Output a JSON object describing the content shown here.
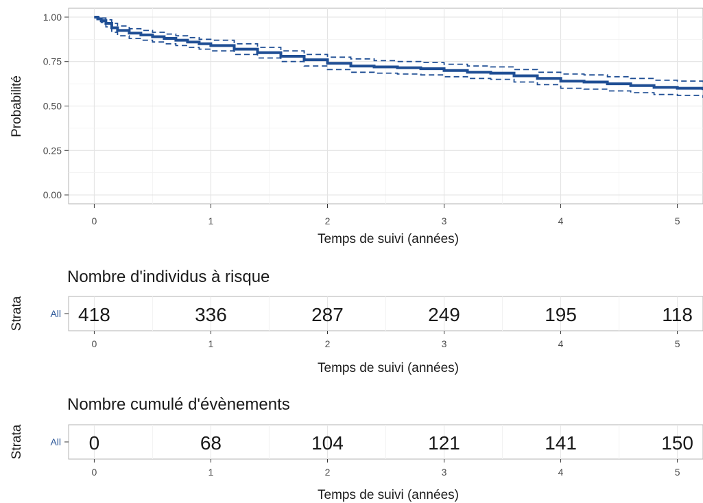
{
  "chart_data": [
    {
      "type": "line",
      "title": "",
      "xlabel": "Temps de suivi (années)",
      "ylabel": "Probabilité",
      "xlim": [
        -0.22,
        5.22
      ],
      "ylim": [
        -0.05,
        1.05
      ],
      "x_ticks": [
        "0",
        "1",
        "2",
        "3",
        "4",
        "5"
      ],
      "y_ticks": [
        "0.00",
        "0.25",
        "0.50",
        "0.75",
        "1.00"
      ],
      "grid": true,
      "legend": "none",
      "color": "#1f4e94",
      "series": [
        {
          "role": "estimate",
          "x": [
            0,
            0.03,
            0.06,
            0.1,
            0.15,
            0.2,
            0.3,
            0.4,
            0.5,
            0.6,
            0.7,
            0.8,
            0.9,
            1.0,
            1.2,
            1.4,
            1.6,
            1.8,
            2.0,
            2.2,
            2.4,
            2.6,
            2.8,
            3.0,
            3.2,
            3.4,
            3.6,
            3.8,
            4.0,
            4.2,
            4.4,
            4.6,
            4.8,
            5.0,
            5.22
          ],
          "y": [
            1.0,
            0.99,
            0.98,
            0.965,
            0.94,
            0.925,
            0.91,
            0.9,
            0.89,
            0.88,
            0.87,
            0.86,
            0.85,
            0.84,
            0.82,
            0.8,
            0.78,
            0.76,
            0.74,
            0.725,
            0.72,
            0.715,
            0.71,
            0.7,
            0.69,
            0.685,
            0.67,
            0.655,
            0.64,
            0.635,
            0.625,
            0.615,
            0.605,
            0.6,
            0.59
          ]
        },
        {
          "role": "upper-ci",
          "x": [
            0,
            0.03,
            0.06,
            0.1,
            0.15,
            0.2,
            0.3,
            0.4,
            0.5,
            0.6,
            0.7,
            0.8,
            0.9,
            1.0,
            1.2,
            1.4,
            1.6,
            1.8,
            2.0,
            2.2,
            2.4,
            2.6,
            2.8,
            3.0,
            3.2,
            3.4,
            3.6,
            3.8,
            4.0,
            4.2,
            4.4,
            4.6,
            4.8,
            5.0,
            5.22
          ],
          "y": [
            1.0,
            1.0,
            0.995,
            0.985,
            0.965,
            0.95,
            0.935,
            0.925,
            0.915,
            0.905,
            0.895,
            0.885,
            0.875,
            0.87,
            0.85,
            0.83,
            0.81,
            0.79,
            0.775,
            0.765,
            0.755,
            0.75,
            0.745,
            0.735,
            0.725,
            0.72,
            0.705,
            0.69,
            0.68,
            0.675,
            0.665,
            0.655,
            0.645,
            0.64,
            0.635
          ]
        },
        {
          "role": "lower-ci",
          "x": [
            0,
            0.03,
            0.06,
            0.1,
            0.15,
            0.2,
            0.3,
            0.4,
            0.5,
            0.6,
            0.7,
            0.8,
            0.9,
            1.0,
            1.2,
            1.4,
            1.6,
            1.8,
            2.0,
            2.2,
            2.4,
            2.6,
            2.8,
            3.0,
            3.2,
            3.4,
            3.6,
            3.8,
            4.0,
            4.2,
            4.4,
            4.6,
            4.8,
            5.0,
            5.22
          ],
          "y": [
            1.0,
            0.985,
            0.97,
            0.945,
            0.915,
            0.895,
            0.88,
            0.87,
            0.86,
            0.85,
            0.84,
            0.83,
            0.82,
            0.81,
            0.79,
            0.77,
            0.75,
            0.725,
            0.705,
            0.69,
            0.685,
            0.68,
            0.675,
            0.665,
            0.655,
            0.65,
            0.635,
            0.62,
            0.6,
            0.595,
            0.585,
            0.575,
            0.565,
            0.56,
            0.545
          ]
        }
      ]
    },
    {
      "type": "table",
      "title": "Nombre d'individus à risque",
      "xlabel": "Temps de suivi (années)",
      "ylabel": "Strata",
      "strata": "All",
      "x": [
        0,
        1,
        2,
        3,
        4,
        5
      ],
      "x_ticks": [
        "0",
        "1",
        "2",
        "3",
        "4",
        "5"
      ],
      "values": [
        "418",
        "336",
        "287",
        "249",
        "195",
        "118"
      ]
    },
    {
      "type": "table",
      "title": "Nombre cumulé d'évènements",
      "xlabel": "Temps de suivi (années)",
      "ylabel": "Strata",
      "strata": "All",
      "x": [
        0,
        1,
        2,
        3,
        4,
        5
      ],
      "x_ticks": [
        "0",
        "1",
        "2",
        "3",
        "4",
        "5"
      ],
      "values": [
        "0",
        "68",
        "104",
        "121",
        "141",
        "150"
      ]
    }
  ]
}
